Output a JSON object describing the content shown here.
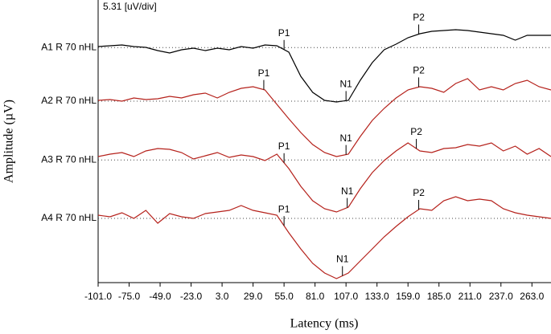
{
  "chart_data": {
    "type": "line",
    "scale_label": "5.31 [uV/div]",
    "x_label": "Latency (ms)",
    "y_label": "Amplitude (µV)",
    "xlim": [
      -101,
      279
    ],
    "ylim": [
      0,
      88
    ],
    "xticks": [
      {
        "value": -101,
        "label": "-101.0"
      },
      {
        "value": -75,
        "label": "-75.0"
      },
      {
        "value": -49,
        "label": "-49.0"
      },
      {
        "value": -23,
        "label": "-23.0"
      },
      {
        "value": 3,
        "label": "3.0"
      },
      {
        "value": 29,
        "label": "29.0"
      },
      {
        "value": 55,
        "label": "55.0"
      },
      {
        "value": 81,
        "label": "81.0"
      },
      {
        "value": 107,
        "label": "107.0"
      },
      {
        "value": 133,
        "label": "133.0"
      },
      {
        "value": 159,
        "label": "159.0"
      },
      {
        "value": 185,
        "label": "185.0"
      },
      {
        "value": 211,
        "label": "211.0"
      },
      {
        "value": 237,
        "label": "237.0"
      },
      {
        "value": 263,
        "label": "263.0"
      }
    ],
    "x": [
      -101,
      -91,
      -81,
      -71,
      -61,
      -51,
      -41,
      -31,
      -21,
      -11,
      -1,
      9,
      19,
      29,
      39,
      49,
      59,
      69,
      79,
      89,
      99,
      109,
      119,
      129,
      139,
      149,
      159,
      169,
      179,
      189,
      199,
      209,
      219,
      229,
      239,
      249,
      259,
      269,
      279
    ],
    "series": [
      {
        "name": "A1 R 70 nHL",
        "color": "#000000",
        "baseline": 73.2,
        "values": [
          73.5,
          73.75,
          74,
          73.5,
          73.25,
          72.25,
          71.5,
          72.5,
          73,
          72.25,
          73,
          72.5,
          73.5,
          73,
          74,
          73.75,
          71.75,
          64.25,
          59.25,
          56.75,
          56.25,
          56.75,
          63,
          68.5,
          72.5,
          74.25,
          76.25,
          77.5,
          78.25,
          78.5,
          78.75,
          78.5,
          78,
          77.5,
          77,
          75.5,
          77,
          77,
          77
        ],
        "peaks": [
          {
            "label": "P1",
            "x": 55
          },
          {
            "label": "N1",
            "x": 107
          },
          {
            "label": "P2",
            "x": 168
          }
        ]
      },
      {
        "name": "A2 R 70 nHL",
        "color": "#b5211b",
        "baseline": 56.5,
        "values": [
          56.75,
          57,
          56.5,
          57.5,
          57,
          57.25,
          58,
          57.5,
          58.5,
          59,
          57.5,
          59.25,
          60.5,
          61,
          60,
          55.5,
          51,
          46.75,
          43,
          40.5,
          39.25,
          40,
          45.5,
          50.5,
          54.25,
          57.5,
          60,
          61,
          60.5,
          59.25,
          62,
          63.5,
          60,
          61,
          60,
          62,
          63,
          61,
          60
        ],
        "peaks": [
          {
            "label": "P1",
            "x": 38
          },
          {
            "label": "N1",
            "x": 107
          },
          {
            "label": "P2",
            "x": 168
          }
        ]
      },
      {
        "name": "A3 R 70 nHL",
        "color": "#b5211b",
        "baseline": 38.2,
        "values": [
          39.25,
          40,
          40.5,
          39.25,
          41,
          41.75,
          41.5,
          40.5,
          38.5,
          39.5,
          40.5,
          39,
          39.75,
          39.25,
          38,
          40,
          35.5,
          30,
          25.5,
          23,
          22,
          23.5,
          29.25,
          34.25,
          38,
          41,
          43.5,
          41,
          40.5,
          41.75,
          42,
          43,
          42.5,
          43.5,
          41,
          42.5,
          40,
          41.75,
          39.25
        ],
        "peaks": [
          {
            "label": "P1",
            "x": 55
          },
          {
            "label": "N1",
            "x": 108
          },
          {
            "label": "P2",
            "x": 166
          }
        ]
      },
      {
        "name": "A4 R 70 nHL",
        "color": "#b5211b",
        "baseline": 20,
        "values": [
          21,
          20.5,
          21.75,
          20,
          22.5,
          18.5,
          21.5,
          20.5,
          20,
          21.5,
          22,
          22.5,
          24,
          22.5,
          21.75,
          21,
          15.5,
          10.5,
          6,
          3,
          1.25,
          3,
          6.75,
          10.5,
          14.25,
          17.5,
          20.5,
          23,
          22.5,
          25.5,
          26.75,
          25.5,
          26,
          25.5,
          23,
          21.75,
          21,
          20.5,
          20
        ],
        "peaks": [
          {
            "label": "P1",
            "x": 55
          },
          {
            "label": "N1",
            "x": 104
          },
          {
            "label": "P2",
            "x": 168
          }
        ]
      }
    ]
  }
}
